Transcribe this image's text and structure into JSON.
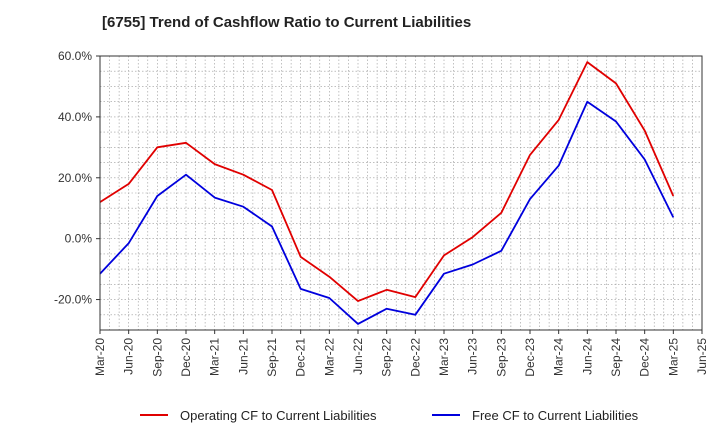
{
  "chart_data": {
    "type": "line",
    "title": "[6755]  Trend of Cashflow Ratio to Current Liabilities",
    "x": [
      "Mar-20",
      "Jun-20",
      "Sep-20",
      "Dec-20",
      "Mar-21",
      "Jun-21",
      "Sep-21",
      "Dec-21",
      "Mar-22",
      "Jun-22",
      "Sep-22",
      "Dec-22",
      "Mar-23",
      "Jun-23",
      "Sep-23",
      "Dec-23",
      "Mar-24",
      "Jun-24",
      "Sep-24",
      "Dec-24",
      "Mar-25",
      "Jun-25"
    ],
    "y_ticks": [
      "60.0%",
      "40.0%",
      "20.0%",
      "0.0%",
      "-20.0%"
    ],
    "y_tick_values": [
      60,
      40,
      20,
      0,
      -20
    ],
    "ylim": [
      -30,
      60
    ],
    "grid": true,
    "legend_position": "bottom",
    "series": [
      {
        "name": "Operating CF to Current Liabilities",
        "color": "#e00000",
        "values": [
          12.0,
          18.0,
          30.0,
          31.5,
          24.5,
          21.0,
          16.0,
          -6.0,
          -12.5,
          -20.5,
          -16.8,
          -19.2,
          -5.5,
          0.5,
          8.5,
          27.5,
          39.0,
          58.0,
          51.0,
          35.5,
          14.0,
          null
        ]
      },
      {
        "name": "Free CF to Current Liabilities",
        "color": "#0000dd",
        "values": [
          -11.5,
          -1.5,
          14.0,
          21.0,
          13.5,
          10.5,
          4.0,
          -16.5,
          -19.5,
          -28.0,
          -23.0,
          -25.0,
          -11.5,
          -8.5,
          -4.0,
          13.0,
          24.0,
          45.0,
          38.5,
          26.0,
          7.0,
          null
        ]
      }
    ]
  }
}
